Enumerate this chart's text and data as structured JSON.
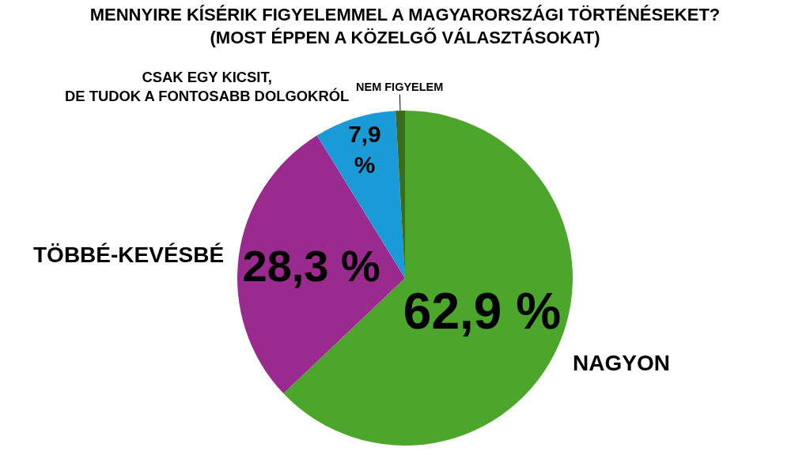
{
  "chart_data": {
    "type": "pie",
    "title": "MENNYIRE KÍSÉRIK FIGYELEMMEL A MAGYARORSZÁGI TÖRTÉNÉSEKET?\n(MOST ÉPPEN A KÖZELGŐ VÁLASZTÁSOKAT)",
    "categories": [
      "NAGYON",
      "TÖBBÉ-KEVÉSBÉ",
      "CSAK EGY KICSIT,\nDE TUDOK A FONTOSABB DOLGOKRÓL",
      "NEM FIGYELEM"
    ],
    "values": [
      62.9,
      28.3,
      7.9,
      0.9
    ],
    "colors": [
      "#4da62c",
      "#9b2a8e",
      "#1a9bd7",
      "#3b6b1e"
    ],
    "value_labels": [
      "62,9 %",
      "28,3 %",
      "7,9\n%",
      null
    ],
    "legend": false
  }
}
